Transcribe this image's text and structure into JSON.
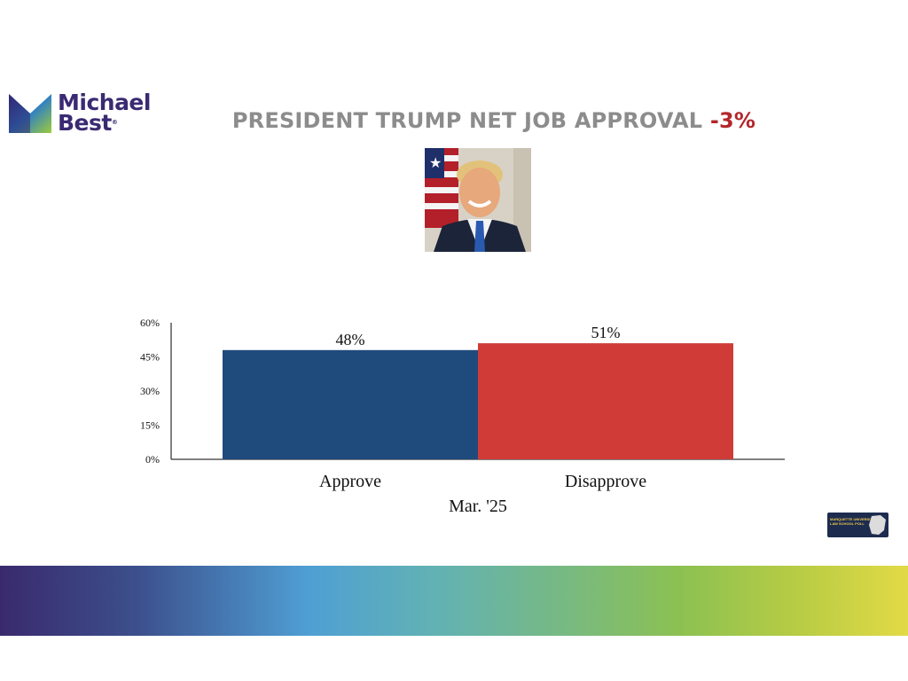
{
  "logo": {
    "line1": "Michael",
    "line2": "Best",
    "mark": "®"
  },
  "title": {
    "text": "PRESIDENT TRUMP NET JOB APPROVAL",
    "net": "-3%"
  },
  "photo": {
    "subject": "presidential-portrait"
  },
  "badge": {
    "line1": "MARQUETTE UNIVERSITY",
    "line2": "LAW SCHOOL POLL"
  },
  "colors": {
    "approve": "#1f4a7c",
    "disapprove": "#d03b38",
    "title_gray": "#8c8c8c",
    "net_red": "#b4262a"
  },
  "chart_data": {
    "type": "bar",
    "categories": [
      "Approve",
      "Disapprove"
    ],
    "values": [
      48,
      51
    ],
    "value_labels": [
      "48%",
      "51%"
    ],
    "colors": [
      "#1f4a7c",
      "#d03b38"
    ],
    "xlabel": "Mar. '25",
    "ylabel": "",
    "ylim": [
      0,
      60
    ],
    "yticks": [
      0,
      15,
      30,
      45,
      60
    ],
    "ytick_labels": [
      "0%",
      "15%",
      "30%",
      "45%",
      "60%"
    ],
    "grid": false,
    "legend": "none"
  }
}
